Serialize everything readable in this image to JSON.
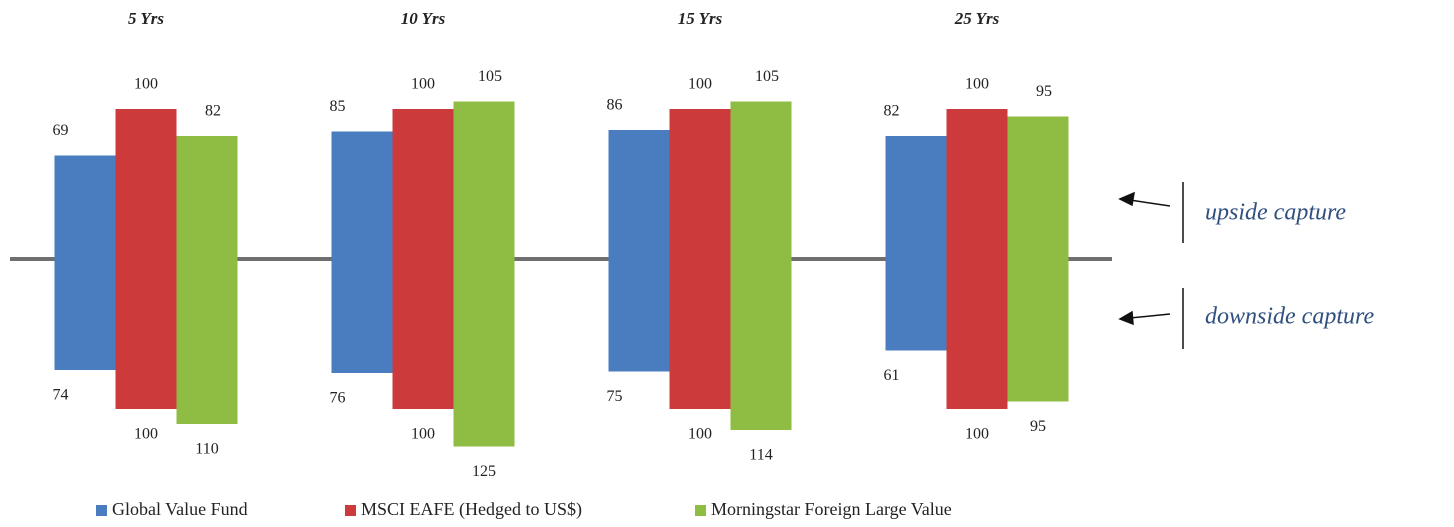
{
  "chart_data": {
    "type": "capture-bar",
    "categories": [
      "5 Yrs",
      "10 Yrs",
      "15 Yrs",
      "25 Yrs"
    ],
    "series": [
      {
        "name": "Global Value Fund",
        "color": "#4a7cc0",
        "upside": [
          69,
          85,
          86,
          82
        ],
        "downside": [
          74,
          76,
          75,
          61
        ]
      },
      {
        "name": "MSCI EAFE (Hedged to US$)",
        "color": "#cc3a3c",
        "upside": [
          100,
          100,
          100,
          100
        ],
        "downside": [
          100,
          100,
          100,
          100
        ]
      },
      {
        "name": "Morningstar Foreign Large Value",
        "color": "#8fbc43",
        "upside": [
          82,
          105,
          105,
          95
        ],
        "downside": [
          110,
          125,
          114,
          95
        ]
      }
    ],
    "annotations": [
      "upside capture",
      "downside capture"
    ]
  }
}
